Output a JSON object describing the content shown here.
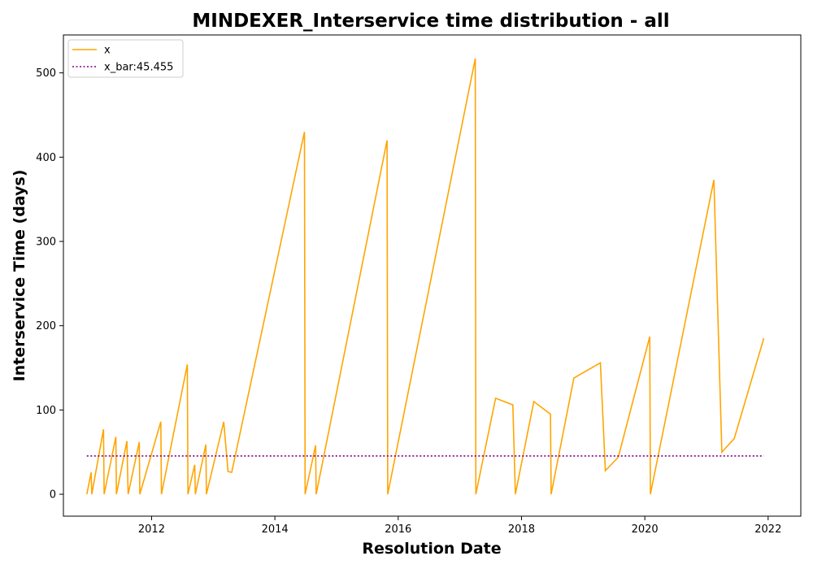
{
  "chart_data": {
    "type": "line",
    "title": "MINDEXER_Interservice time distribution - all",
    "xlabel": "Resolution Date",
    "ylabel": "Interservice Time (days)",
    "xlim": [
      2010.57,
      2022.53
    ],
    "ylim": [
      -26,
      545
    ],
    "x_ticks": [
      2012,
      2014,
      2016,
      2018,
      2020,
      2022
    ],
    "y_ticks": [
      0,
      100,
      200,
      300,
      400,
      500
    ],
    "grid": false,
    "legend_position": "top-left",
    "series": [
      {
        "name": "x",
        "color": "#ffa500",
        "style": "solid",
        "x": [
          2010.95,
          2011.02,
          2011.03,
          2011.22,
          2011.23,
          2011.42,
          2011.43,
          2011.6,
          2011.62,
          2011.8,
          2011.81,
          2012.15,
          2012.16,
          2012.58,
          2012.59,
          2012.7,
          2012.71,
          2012.88,
          2012.89,
          2013.17,
          2013.24,
          2013.3,
          2014.48,
          2014.49,
          2014.66,
          2014.67,
          2015.82,
          2015.83,
          2017.25,
          2017.26,
          2017.58,
          2017.86,
          2017.9,
          2018.2,
          2018.47,
          2018.48,
          2018.85,
          2019.28,
          2019.36,
          2019.57,
          2020.08,
          2020.09,
          2021.12,
          2021.25,
          2021.45,
          2021.93
        ],
        "y": [
          0,
          26,
          0,
          77,
          0,
          68,
          0,
          63,
          0,
          62,
          0,
          86,
          0,
          154,
          0,
          35,
          0,
          59,
          0,
          86,
          27,
          26,
          430,
          0,
          58,
          0,
          420,
          0,
          517,
          0,
          114,
          106,
          0,
          110,
          95,
          0,
          138,
          156,
          28,
          44,
          187,
          0,
          373,
          50,
          66,
          185
        ]
      },
      {
        "name": "x_bar:45.455",
        "color": "#800080",
        "style": "dotted",
        "x": [
          2010.95,
          2021.93
        ],
        "y": [
          45.455,
          45.455
        ]
      }
    ]
  }
}
